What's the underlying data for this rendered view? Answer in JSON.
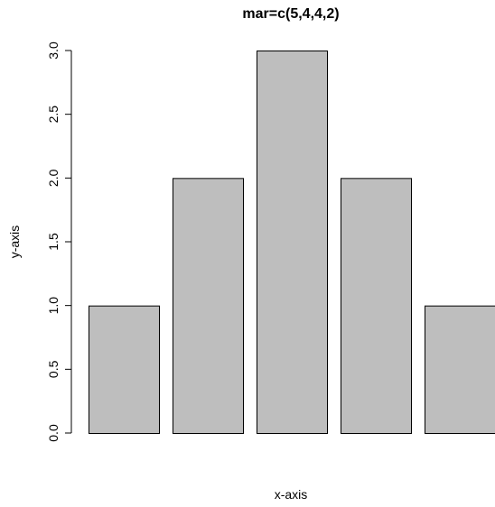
{
  "chart_data": {
    "type": "bar",
    "title": "mar=c(5,4,4,2)",
    "xlabel": "x-axis",
    "ylabel": "y-axis",
    "categories": [
      "",
      "",
      "",
      "",
      ""
    ],
    "values": [
      1,
      2,
      3,
      2,
      1
    ],
    "ylim": [
      0,
      3
    ],
    "yticks": [
      "0.0",
      "0.5",
      "1.0",
      "1.5",
      "2.0",
      "2.5",
      "3.0"
    ],
    "grid": false,
    "legend": "none",
    "bar_color": "#bebebe",
    "bar_border_color": "#000000"
  }
}
